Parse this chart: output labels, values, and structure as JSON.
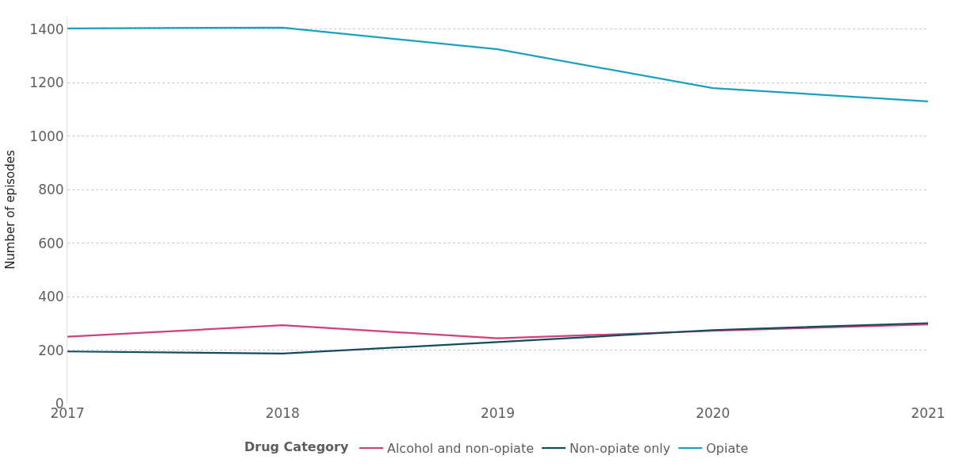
{
  "chart_data": {
    "type": "line",
    "ylabel": "Number of episodes",
    "legend_title": "Drug Category",
    "x": [
      2017,
      2018,
      2019,
      2020,
      2021
    ],
    "series": [
      {
        "name": "Alcohol and non-opiate",
        "color": "#d0407a",
        "values": [
          250,
          293,
          244,
          272,
          296
        ]
      },
      {
        "name": "Non-opiate only",
        "color": "#124d5e",
        "values": [
          195,
          187,
          230,
          275,
          301
        ]
      },
      {
        "name": "Opiate",
        "color": "#1ba0bf",
        "values": [
          1403,
          1406,
          1325,
          1180,
          1130
        ]
      }
    ],
    "xlim": [
      2017,
      2021
    ],
    "xticks": [
      2017,
      2018,
      2019,
      2020,
      2021
    ],
    "ylim": [
      0,
      1450
    ],
    "yticks": [
      0,
      200,
      400,
      600,
      800,
      1000,
      1200,
      1400
    ],
    "grid": "y",
    "legend": "bottom",
    "marker": "none",
    "line_style": "solid"
  }
}
